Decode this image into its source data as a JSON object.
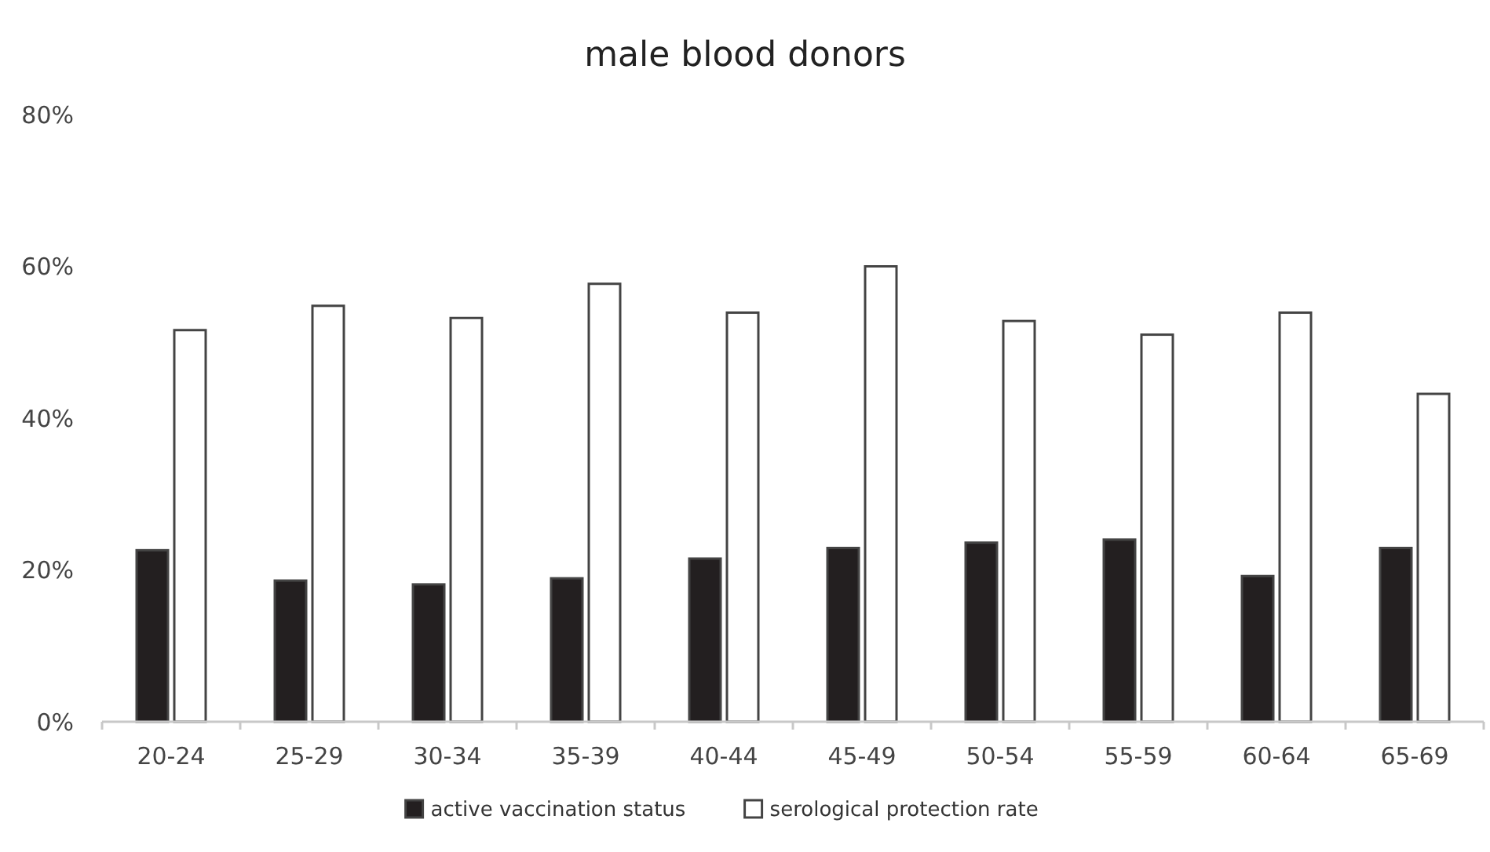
{
  "chart_data": {
    "type": "bar",
    "title": "male blood donors",
    "categories": [
      "20-24",
      "25-29",
      "30-34",
      "35-39",
      "40-44",
      "45-49",
      "50-54",
      "55-59",
      "60-64",
      "65-69"
    ],
    "series": [
      {
        "name": "active vaccination status",
        "color": "#231f20",
        "values": [
          22.6,
          18.6,
          18.1,
          18.9,
          21.5,
          22.9,
          23.6,
          24.0,
          19.2,
          22.9
        ]
      },
      {
        "name": "serological protection rate",
        "color": "#ffffff",
        "values": [
          51.6,
          54.8,
          53.2,
          57.7,
          53.9,
          60.0,
          52.8,
          51.0,
          53.9,
          43.2
        ]
      }
    ],
    "ylim": [
      0,
      80
    ],
    "yticks": [
      {
        "value": 0,
        "label": "0%"
      },
      {
        "value": 20,
        "label": "20%"
      },
      {
        "value": 40,
        "label": "40%"
      },
      {
        "value": 60,
        "label": "60%"
      },
      {
        "value": 80,
        "label": "80%"
      }
    ],
    "grid": false,
    "legend": "bottom"
  }
}
